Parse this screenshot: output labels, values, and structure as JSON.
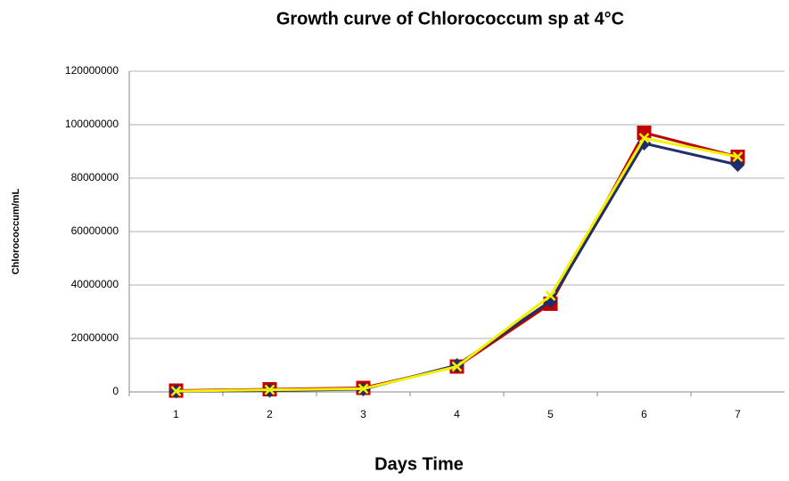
{
  "chart_data": {
    "type": "line",
    "title": "Growth curve of Chlorococcum sp at 4°C",
    "x_label": "Days Time",
    "y_label": "Chlorococcum/mL",
    "categories": [
      "1",
      "2",
      "3",
      "4",
      "5",
      "6",
      "7"
    ],
    "series": [
      {
        "color": "#c00000",
        "marker": "square",
        "values": [
          500000,
          1000000,
          1500000,
          9500000,
          33000000,
          97000000,
          88000000
        ]
      },
      {
        "color": "#1f2d6b",
        "marker": "diamond",
        "values": [
          200000,
          500000,
          1000000,
          10000000,
          34000000,
          93000000,
          85000000
        ]
      },
      {
        "color": "#f2f200",
        "marker": "x",
        "values": [
          300000,
          800000,
          1200000,
          9500000,
          36000000,
          95000000,
          88000000
        ]
      }
    ],
    "ylim": [
      0,
      120000000
    ],
    "yticks": [
      0,
      20000000,
      40000000,
      60000000,
      80000000,
      100000000,
      120000000
    ],
    "grid": true
  }
}
